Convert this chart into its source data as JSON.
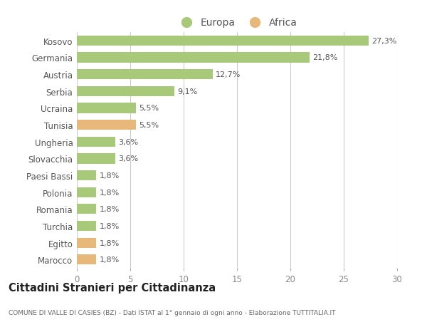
{
  "categories": [
    "Kosovo",
    "Germania",
    "Austria",
    "Serbia",
    "Ucraina",
    "Tunisia",
    "Ungheria",
    "Slovacchia",
    "Paesi Bassi",
    "Polonia",
    "Romania",
    "Turchia",
    "Egitto",
    "Marocco"
  ],
  "values": [
    27.3,
    21.8,
    12.7,
    9.1,
    5.5,
    5.5,
    3.6,
    3.6,
    1.8,
    1.8,
    1.8,
    1.8,
    1.8,
    1.8
  ],
  "labels": [
    "27,3%",
    "21,8%",
    "12,7%",
    "9,1%",
    "5,5%",
    "5,5%",
    "3,6%",
    "3,6%",
    "1,8%",
    "1,8%",
    "1,8%",
    "1,8%",
    "1,8%",
    "1,8%"
  ],
  "continents": [
    "Europa",
    "Europa",
    "Europa",
    "Europa",
    "Europa",
    "Africa",
    "Europa",
    "Europa",
    "Europa",
    "Europa",
    "Europa",
    "Europa",
    "Africa",
    "Africa"
  ],
  "colors": {
    "Europa": "#a8c87a",
    "Africa": "#e8b87a"
  },
  "xlim": [
    0,
    30
  ],
  "xticks": [
    0,
    5,
    10,
    15,
    20,
    25,
    30
  ],
  "title": "Cittadini Stranieri per Cittadinanza",
  "subtitle": "COMUNE DI VALLE DI CASIES (BZ) - Dati ISTAT al 1° gennaio di ogni anno - Elaborazione TUTTITALIA.IT",
  "background_color": "#ffffff",
  "grid_color": "#cccccc"
}
